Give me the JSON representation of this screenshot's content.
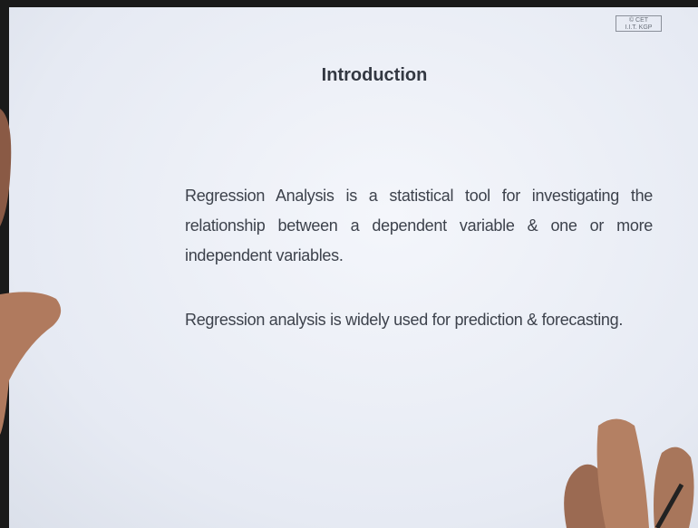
{
  "logo": {
    "lines": [
      "© CET",
      "I.I.T. KGP"
    ]
  },
  "header": {
    "title": "Introduction"
  },
  "paragraphs": [
    "Regression Analysis is a statistical tool for investigating the relationship between a dependent variable & one or more independent variables.",
    "Regression analysis is widely used for prediction & forecasting."
  ]
}
